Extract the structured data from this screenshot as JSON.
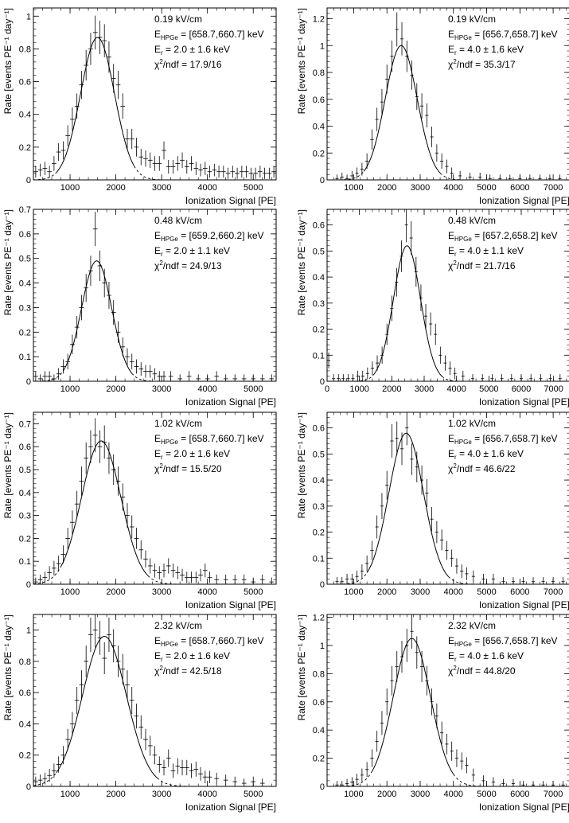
{
  "figure": {
    "panel_layout": "4 rows x 2 columns",
    "line_color": "#000000",
    "background": "#ffffff"
  },
  "chart_data": [
    {
      "type": "scatter",
      "title": "",
      "xlabel": "Ionization Signal [PE]",
      "ylabel": "Rate [events PE⁻¹ day⁻¹]",
      "xlim": [
        200,
        5500
      ],
      "ylim": [
        0,
        1.05
      ],
      "xticks": [
        1000,
        2000,
        3000,
        4000,
        5000
      ],
      "yticks": [
        0,
        0.2,
        0.4,
        0.6,
        0.8,
        1
      ],
      "annotations": {
        "field": "0.19 kV/cm",
        "ehpge": "[658.7,660.7] keV",
        "er": "2.0 ± 1.6 keV",
        "chi2": "17.9/16"
      },
      "fit": {
        "amplitude": 0.87,
        "mean": 1600,
        "sigma": 370,
        "solid_range": [
          700,
          2400
        ]
      },
      "series": [
        {
          "name": "data",
          "x": [
            250,
            350,
            450,
            550,
            650,
            750,
            850,
            950,
            1050,
            1150,
            1250,
            1350,
            1450,
            1550,
            1650,
            1750,
            1850,
            1950,
            2050,
            2150,
            2250,
            2350,
            2450,
            2550,
            2650,
            2750,
            2850,
            2950,
            3050,
            3150,
            3250,
            3350,
            3450,
            3550,
            3650,
            3750,
            3850,
            3950,
            4050,
            4150,
            4250,
            4350,
            4450,
            4550,
            4650,
            4750,
            4850,
            4950,
            5050,
            5150,
            5250,
            5350,
            5450
          ],
          "y": [
            0.05,
            0.06,
            0.07,
            0.05,
            0.1,
            0.17,
            0.18,
            0.27,
            0.37,
            0.45,
            0.58,
            0.7,
            0.8,
            0.9,
            0.87,
            0.85,
            0.75,
            0.62,
            0.58,
            0.45,
            0.25,
            0.25,
            0.2,
            0.14,
            0.13,
            0.12,
            0.1,
            0.1,
            0.18,
            0.08,
            0.08,
            0.1,
            0.12,
            0.08,
            0.1,
            0.07,
            0.06,
            0.07,
            0.05,
            0.06,
            0.05,
            0.05,
            0.04,
            0.05,
            0.04,
            0.05,
            0.05,
            0.04,
            0.04,
            0.05,
            0.04,
            0.04,
            0.05
          ]
        }
      ]
    },
    {
      "type": "scatter",
      "title": "",
      "xlabel": "Ionization Signal [PE]",
      "ylabel": "Rate [events PE⁻¹ day⁻¹]",
      "xlim": [
        200,
        7500
      ],
      "ylim": [
        0,
        1.28
      ],
      "xticks": [
        1000,
        2000,
        3000,
        4000,
        5000,
        6000,
        7000
      ],
      "yticks": [
        0,
        0.2,
        0.4,
        0.6,
        0.8,
        1,
        1.2
      ],
      "annotations": {
        "field": "0.19 kV/cm",
        "ehpge": "[656.7,658.7] keV",
        "er": "4.0 ± 1.6 keV",
        "chi2": "35.3/17"
      },
      "fit": {
        "amplitude": 1.0,
        "mean": 2430,
        "sigma": 480,
        "solid_range": [
          1300,
          3600
        ]
      },
      "series": [
        {
          "name": "data",
          "x": [
            500,
            650,
            800,
            950,
            1100,
            1250,
            1400,
            1550,
            1700,
            1850,
            2000,
            2150,
            2300,
            2450,
            2600,
            2750,
            2900,
            3050,
            3200,
            3350,
            3500,
            3650,
            3800,
            3950,
            4200,
            4500,
            4800,
            5100,
            5400,
            5700,
            6000,
            6300,
            6600,
            6900,
            7200
          ],
          "y": [
            0.01,
            0.02,
            0.01,
            0.03,
            0.05,
            0.08,
            0.14,
            0.3,
            0.45,
            0.58,
            0.75,
            0.92,
            1.12,
            1.05,
            0.92,
            0.78,
            0.62,
            0.55,
            0.48,
            0.32,
            0.2,
            0.14,
            0.1,
            0.05,
            0.03,
            0.02,
            0.02,
            0.01,
            0.01,
            0.01,
            0.01,
            0.01,
            0.01,
            0.01,
            0.01
          ]
        }
      ]
    },
    {
      "type": "scatter",
      "title": "",
      "xlabel": "Ionization Signal [PE]",
      "ylabel": "Rate [events PE⁻¹ day⁻¹]",
      "xlim": [
        200,
        5500
      ],
      "ylim": [
        0,
        0.7
      ],
      "xticks": [
        1000,
        2000,
        3000,
        4000,
        5000
      ],
      "yticks": [
        0,
        0.1,
        0.2,
        0.3,
        0.4,
        0.5,
        0.6,
        0.7
      ],
      "annotations": {
        "field": "0.48 kV/cm",
        "ehpge": "[659.2,660.2] keV",
        "er": "2.0 ± 1.1 keV",
        "chi2": "24.9/13"
      },
      "fit": {
        "amplitude": 0.49,
        "mean": 1580,
        "sigma": 330,
        "solid_range": [
          850,
          2350
        ]
      },
      "series": [
        {
          "name": "data",
          "x": [
            250,
            350,
            450,
            550,
            650,
            750,
            850,
            950,
            1050,
            1150,
            1250,
            1350,
            1450,
            1550,
            1650,
            1750,
            1850,
            1950,
            2050,
            2150,
            2250,
            2350,
            2450,
            2550,
            2650,
            2750,
            2850,
            2950,
            3050,
            3200,
            3400,
            3600,
            3800,
            4000,
            4200,
            4400,
            4600,
            4800,
            5000,
            5200,
            5400
          ],
          "y": [
            0.02,
            0.01,
            0.02,
            0.02,
            0.01,
            0.03,
            0.06,
            0.08,
            0.15,
            0.22,
            0.3,
            0.38,
            0.45,
            0.62,
            0.47,
            0.4,
            0.35,
            0.28,
            0.2,
            0.14,
            0.1,
            0.08,
            0.06,
            0.05,
            0.04,
            0.04,
            0.03,
            0.02,
            0.02,
            0.02,
            0.01,
            0.02,
            0.01,
            0.01,
            0.02,
            0.01,
            0.01,
            0.01,
            0.01,
            0.01,
            0.01
          ]
        }
      ]
    },
    {
      "type": "scatter",
      "title": "",
      "xlabel": "Ionization Signal [PE]",
      "ylabel": "Rate [events PE⁻¹ day⁻¹]",
      "xlim": [
        0,
        7500
      ],
      "ylim": [
        0,
        0.66
      ],
      "xticks": [
        0,
        1000,
        2000,
        3000,
        4000,
        5000,
        6000,
        7000
      ],
      "yticks": [
        0,
        0.1,
        0.2,
        0.3,
        0.4,
        0.5,
        0.6
      ],
      "annotations": {
        "field": "0.48 kV/cm",
        "ehpge": "[657.2,658.2] keV",
        "er": "4.0 ± 1.1 keV",
        "chi2": "21.7/16"
      },
      "fit": {
        "amplitude": 0.52,
        "mean": 2470,
        "sigma": 420,
        "solid_range": [
          1450,
          3550
        ]
      },
      "series": [
        {
          "name": "data",
          "x": [
            50,
            200,
            350,
            500,
            650,
            800,
            950,
            1100,
            1250,
            1400,
            1550,
            1700,
            1850,
            2000,
            2150,
            2300,
            2450,
            2600,
            2750,
            2900,
            3050,
            3200,
            3350,
            3500,
            3650,
            3800,
            3950,
            4200,
            4500,
            4800,
            5100,
            5400,
            5700,
            6000,
            6300,
            6600,
            6900,
            7200
          ],
          "y": [
            0.08,
            0.01,
            0.01,
            0.01,
            0.01,
            0.01,
            0.02,
            0.02,
            0.03,
            0.05,
            0.07,
            0.1,
            0.18,
            0.28,
            0.38,
            0.48,
            0.6,
            0.55,
            0.42,
            0.32,
            0.25,
            0.22,
            0.18,
            0.1,
            0.07,
            0.05,
            0.03,
            0.02,
            0.01,
            0.01,
            0.01,
            0.01,
            0.01,
            0.01,
            0.01,
            0.01,
            0.01,
            0.01
          ]
        }
      ]
    },
    {
      "type": "scatter",
      "title": "",
      "xlabel": "Ionization Signal [PE]",
      "ylabel": "Rate [events PE⁻¹ day⁻¹]",
      "xlim": [
        200,
        5500
      ],
      "ylim": [
        0,
        0.75
      ],
      "xticks": [
        1000,
        2000,
        3000,
        4000,
        5000
      ],
      "yticks": [
        0,
        0.1,
        0.2,
        0.3,
        0.4,
        0.5,
        0.6,
        0.7
      ],
      "annotations": {
        "field": "1.02 kV/cm",
        "ehpge": "[658.7,660.7] keV",
        "er": "2.0 ± 1.6 keV",
        "chi2": "15.5/20"
      },
      "fit": {
        "amplitude": 0.625,
        "mean": 1680,
        "sigma": 430,
        "solid_range": [
          800,
          2700
        ]
      },
      "series": [
        {
          "name": "data",
          "x": [
            250,
            350,
            450,
            550,
            650,
            750,
            850,
            950,
            1050,
            1150,
            1250,
            1350,
            1450,
            1550,
            1650,
            1750,
            1850,
            1950,
            2050,
            2150,
            2250,
            2350,
            2450,
            2550,
            2650,
            2750,
            2850,
            2950,
            3050,
            3150,
            3250,
            3350,
            3450,
            3550,
            3650,
            3750,
            3850,
            3950,
            4050,
            4200,
            4400,
            4600,
            4800,
            5000,
            5200,
            5400
          ],
          "y": [
            0.01,
            0.02,
            0.03,
            0.05,
            0.07,
            0.09,
            0.13,
            0.2,
            0.27,
            0.35,
            0.45,
            0.55,
            0.6,
            0.65,
            0.6,
            0.62,
            0.55,
            0.5,
            0.45,
            0.38,
            0.3,
            0.25,
            0.2,
            0.15,
            0.11,
            0.08,
            0.06,
            0.05,
            0.06,
            0.08,
            0.06,
            0.05,
            0.04,
            0.03,
            0.03,
            0.03,
            0.04,
            0.06,
            0.03,
            0.02,
            0.02,
            0.02,
            0.02,
            0.01,
            0.02,
            0.01
          ]
        }
      ]
    },
    {
      "type": "scatter",
      "title": "",
      "xlabel": "Ionization Signal [PE]",
      "ylabel": "Rate [events PE⁻¹ day⁻¹]",
      "xlim": [
        200,
        7500
      ],
      "ylim": [
        0,
        0.66
      ],
      "xticks": [
        1000,
        2000,
        3000,
        4000,
        5000,
        6000,
        7000
      ],
      "yticks": [
        0,
        0.1,
        0.2,
        0.3,
        0.4,
        0.5,
        0.6
      ],
      "annotations": {
        "field": "1.02 kV/cm",
        "ehpge": "[656.7,658.7] keV",
        "er": "4.0 ± 1.6 keV",
        "chi2": "46.6/22"
      },
      "fit": {
        "amplitude": 0.58,
        "mean": 2580,
        "sigma": 520,
        "solid_range": [
          1400,
          3850
        ]
      },
      "series": [
        {
          "name": "data",
          "x": [
            500,
            650,
            800,
            950,
            1100,
            1250,
            1400,
            1550,
            1700,
            1850,
            2000,
            2150,
            2300,
            2450,
            2600,
            2750,
            2900,
            3050,
            3200,
            3350,
            3500,
            3650,
            3800,
            3950,
            4100,
            4250,
            4400,
            4600,
            4900,
            5200,
            5500,
            5800,
            6100,
            6400,
            6700,
            7000,
            7300
          ],
          "y": [
            0.01,
            0.01,
            0.02,
            0.02,
            0.03,
            0.05,
            0.08,
            0.13,
            0.22,
            0.3,
            0.38,
            0.55,
            0.56,
            0.52,
            0.6,
            0.48,
            0.45,
            0.4,
            0.35,
            0.25,
            0.2,
            0.17,
            0.13,
            0.1,
            0.07,
            0.05,
            0.04,
            0.03,
            0.02,
            0.02,
            0.01,
            0.01,
            0.01,
            0.01,
            0.01,
            0.01,
            0.01
          ]
        }
      ]
    },
    {
      "type": "scatter",
      "title": "",
      "xlabel": "Ionization Signal [PE]",
      "ylabel": "Rate [events PE⁻¹ day⁻¹]",
      "xlim": [
        200,
        5500
      ],
      "ylim": [
        0,
        1.1
      ],
      "xticks": [
        1000,
        2000,
        3000,
        4000,
        5000
      ],
      "yticks": [
        0,
        0.2,
        0.4,
        0.6,
        0.8,
        1
      ],
      "annotations": {
        "field": "2.32 kV/cm",
        "ehpge": "[658.7,660.7] keV",
        "er": "2.0 ± 1.6 keV",
        "chi2": "42.5/18"
      },
      "fit": {
        "amplitude": 0.96,
        "mean": 1750,
        "sigma": 480,
        "solid_range": [
          700,
          2900
        ]
      },
      "series": [
        {
          "name": "data",
          "x": [
            250,
            350,
            450,
            550,
            650,
            750,
            850,
            950,
            1050,
            1150,
            1250,
            1350,
            1450,
            1550,
            1650,
            1750,
            1850,
            1950,
            2050,
            2150,
            2250,
            2350,
            2450,
            2550,
            2650,
            2750,
            2850,
            2950,
            3050,
            3150,
            3250,
            3350,
            3450,
            3550,
            3650,
            3750,
            3850,
            3950,
            4050,
            4200,
            4400,
            4600,
            4800,
            5000,
            5200
          ],
          "y": [
            0.03,
            0.04,
            0.05,
            0.07,
            0.1,
            0.14,
            0.2,
            0.3,
            0.4,
            0.55,
            0.65,
            0.8,
            0.97,
            1.0,
            0.95,
            0.82,
            0.97,
            0.9,
            0.8,
            0.75,
            0.65,
            0.55,
            0.45,
            0.38,
            0.3,
            0.26,
            0.2,
            0.14,
            0.12,
            0.18,
            0.1,
            0.13,
            0.12,
            0.12,
            0.1,
            0.11,
            0.08,
            0.06,
            0.06,
            0.05,
            0.04,
            0.03,
            0.02,
            0.03,
            0.02
          ]
        }
      ]
    },
    {
      "type": "scatter",
      "title": "",
      "xlabel": "Ionization Signal [PE]",
      "ylabel": "Rate [events PE⁻¹ day⁻¹]",
      "xlim": [
        200,
        7500
      ],
      "ylim": [
        0,
        1.22
      ],
      "xticks": [
        1000,
        2000,
        3000,
        4000,
        5000,
        6000,
        7000
      ],
      "yticks": [
        0,
        0.2,
        0.4,
        0.6,
        0.8,
        1,
        1.2
      ],
      "annotations": {
        "field": "2.32 kV/cm",
        "ehpge": "[656.7,658.7] keV",
        "er": "4.0 ± 1.6 keV",
        "chi2": "44.8/20"
      },
      "fit": {
        "amplitude": 1.05,
        "mean": 2750,
        "sigma": 560,
        "solid_range": [
          1550,
          4000
        ]
      },
      "series": [
        {
          "name": "data",
          "x": [
            500,
            650,
            800,
            950,
            1100,
            1250,
            1400,
            1550,
            1700,
            1850,
            2000,
            2150,
            2300,
            2450,
            2600,
            2750,
            2900,
            3050,
            3200,
            3350,
            3500,
            3650,
            3800,
            3950,
            4100,
            4250,
            4400,
            4600,
            4900,
            5200,
            5500,
            5800,
            6100,
            6400,
            6700,
            7000,
            7300
          ],
          "y": [
            0.01,
            0.01,
            0.02,
            0.03,
            0.05,
            0.08,
            0.12,
            0.2,
            0.32,
            0.45,
            0.6,
            0.75,
            0.85,
            0.92,
            1.0,
            1.1,
            0.95,
            0.85,
            0.75,
            0.6,
            0.5,
            0.38,
            0.3,
            0.25,
            0.2,
            0.18,
            0.15,
            0.08,
            0.04,
            0.03,
            0.02,
            0.02,
            0.01,
            0.01,
            0.01,
            0.01,
            0.01
          ]
        }
      ]
    }
  ]
}
